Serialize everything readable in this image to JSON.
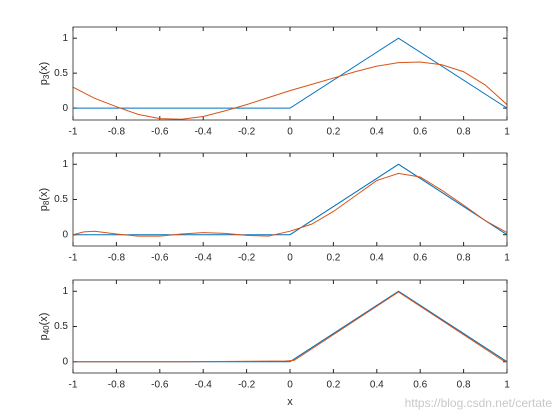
{
  "chart_data": [
    {
      "type": "line",
      "ylabel": {
        "base": "p",
        "subscript": "3",
        "rest": "(x)"
      },
      "xlim": [
        -1,
        1
      ],
      "ylim": [
        -0.17,
        1.16
      ],
      "xticks": [
        -1,
        -0.8,
        -0.6,
        -0.4,
        -0.2,
        0,
        0.2,
        0.4,
        0.6,
        0.8,
        1
      ],
      "yticks": [
        0,
        0.5,
        1
      ],
      "series": [
        {
          "color": "#0072BD",
          "x": [
            -1,
            0,
            0.5,
            1
          ],
          "values": [
            0,
            0,
            1,
            0
          ]
        },
        {
          "color": "#D95319",
          "x": [
            -1,
            -0.9,
            -0.8,
            -0.7,
            -0.6,
            -0.5,
            -0.4,
            -0.3,
            -0.2,
            -0.1,
            0,
            0.1,
            0.2,
            0.3,
            0.4,
            0.5,
            0.6,
            0.7,
            0.8,
            0.9,
            1
          ],
          "values": [
            0.3,
            0.14,
            0.02,
            -0.09,
            -0.15,
            -0.16,
            -0.12,
            -0.04,
            0.05,
            0.15,
            0.25,
            0.34,
            0.43,
            0.52,
            0.6,
            0.65,
            0.66,
            0.62,
            0.52,
            0.33,
            0.05
          ]
        }
      ]
    },
    {
      "type": "line",
      "ylabel": {
        "base": "p",
        "subscript": "8",
        "rest": "(x)"
      },
      "xlim": [
        -1,
        1
      ],
      "ylim": [
        -0.16,
        1.16
      ],
      "xticks": [
        -1,
        -0.8,
        -0.6,
        -0.4,
        -0.2,
        0,
        0.2,
        0.4,
        0.6,
        0.8,
        1
      ],
      "yticks": [
        0,
        0.5,
        1
      ],
      "series": [
        {
          "color": "#0072BD",
          "x": [
            -1,
            0,
            0.5,
            1
          ],
          "values": [
            0,
            0,
            1,
            0
          ]
        },
        {
          "color": "#D95319",
          "x": [
            -1,
            -0.95,
            -0.9,
            -0.8,
            -0.7,
            -0.6,
            -0.5,
            -0.4,
            -0.3,
            -0.2,
            -0.1,
            0,
            0.1,
            0.2,
            0.3,
            0.4,
            0.5,
            0.6,
            0.7,
            0.8,
            0.9,
            1
          ],
          "values": [
            0,
            0.04,
            0.05,
            0.01,
            -0.02,
            -0.02,
            0.01,
            0.03,
            0.02,
            -0.01,
            -0.02,
            0.05,
            0.15,
            0.33,
            0.55,
            0.77,
            0.87,
            0.82,
            0.63,
            0.42,
            0.2,
            0.03
          ]
        }
      ]
    },
    {
      "type": "line",
      "ylabel": {
        "base": "p",
        "subscript": "40",
        "rest": "(x)"
      },
      "xlabel": "x",
      "xlim": [
        -1,
        1
      ],
      "ylim": [
        -0.16,
        1.16
      ],
      "xticks": [
        -1,
        -0.8,
        -0.6,
        -0.4,
        -0.2,
        0,
        0.2,
        0.4,
        0.6,
        0.8,
        1
      ],
      "yticks": [
        0,
        0.5,
        1
      ],
      "series": [
        {
          "color": "#0072BD",
          "x": [
            -1,
            0,
            0.5,
            1
          ],
          "values": [
            0,
            0,
            1,
            0
          ]
        },
        {
          "color": "#D95319",
          "x": [
            -1,
            -0.5,
            -0.02,
            0.02,
            0.5,
            0.98,
            1
          ],
          "values": [
            0,
            0,
            0.01,
            0.02,
            0.99,
            0.02,
            0
          ]
        }
      ]
    }
  ],
  "watermark": "https://blog.csdn.net/certate"
}
